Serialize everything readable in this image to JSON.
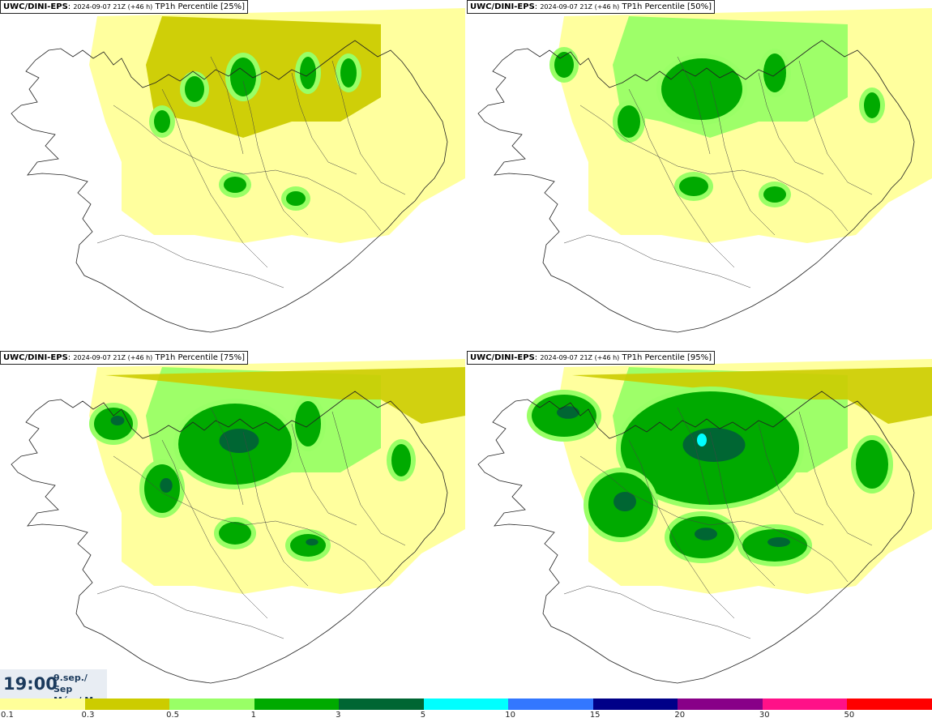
{
  "panels": [
    {
      "model": "UWC/DINI-EPS",
      "run": "2024-09-07 21Z (+46 h)",
      "product": "TP1h Percentile [25%]",
      "intensity": 0
    },
    {
      "model": "UWC/DINI-EPS",
      "run": "2024-09-07 21Z (+46 h)",
      "product": "TP1h Percentile [50%]",
      "intensity": 1
    },
    {
      "model": "UWC/DINI-EPS",
      "run": "2024-09-07 21Z (+46 h)",
      "product": "TP1h Percentile [75%]",
      "intensity": 2
    },
    {
      "model": "UWC/DINI-EPS",
      "run": "2024-09-07 21Z (+46 h)",
      "product": "TP1h Percentile [95%]",
      "intensity": 3
    }
  ],
  "valid_time": {
    "time": "19:00",
    "date_line1": "9.sep./ Sep",
    "date_line2": "Mán./ Mon"
  },
  "legend": {
    "colors": [
      "#ffff99",
      "#cccc00",
      "#99ff66",
      "#00aa00",
      "#006633",
      "#00ffff",
      "#3377ff",
      "#000088",
      "#880088",
      "#ff1188",
      "#ff0000"
    ],
    "labels": [
      "0.1",
      "0.3",
      "0.5",
      "1",
      "3",
      "5",
      "10",
      "15",
      "20",
      "30",
      "50"
    ]
  }
}
